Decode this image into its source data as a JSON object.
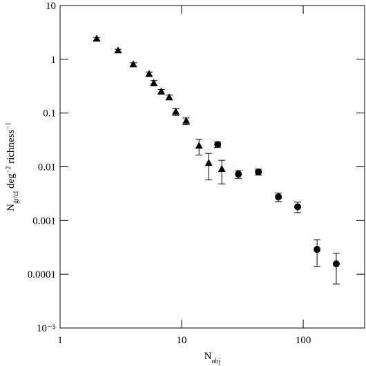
{
  "chart_data": {
    "type": "scatter",
    "x_label": [
      {
        "text": "N"
      },
      {
        "text": "obj",
        "shift": "sub"
      }
    ],
    "y_label": [
      {
        "text": "N"
      },
      {
        "text": "gr/cl",
        "shift": "sub"
      },
      {
        "text": " deg"
      },
      {
        "text": "−2",
        "shift": "sup"
      },
      {
        "text": " richness"
      },
      {
        "text": "−1",
        "shift": "sup"
      }
    ],
    "xscale": "log",
    "yscale": "log",
    "xlim": [
      1,
      320
    ],
    "ylim": [
      1e-05,
      10
    ],
    "xticks": [
      1,
      10,
      100
    ],
    "yticks": [
      10,
      1,
      0.1,
      0.01,
      0.001,
      0.0001,
      {
        "value": 1e-05,
        "label": "10⁻⁵"
      }
    ],
    "series": [
      {
        "marker": "triangle",
        "color": "#000000",
        "x": [
          2,
          3,
          4,
          5.4,
          5.9,
          6.8,
          7.9,
          8.95,
          10.9,
          13.9,
          16.7,
          21.4
        ],
        "values": [
          2.4,
          1.45,
          0.8,
          0.53,
          0.36,
          0.25,
          0.195,
          0.105,
          0.071,
          0.0245,
          0.0117,
          0.009
        ],
        "errors": [
          0.15,
          0.09,
          0.06,
          0.05,
          0.04,
          0.025,
          0.02,
          0.015,
          0.01,
          0.008,
          0.006,
          0.0042
        ]
      },
      {
        "marker": "circle",
        "color": "#000000",
        "x": [
          19.8,
          29.3,
          42.8,
          62.5,
          90,
          130,
          187
        ],
        "values": [
          0.026,
          0.0073,
          0.008,
          0.00275,
          0.0018,
          0.00029,
          0.000156
        ],
        "errors": [
          0.003,
          0.0012,
          0.001,
          0.0005,
          0.0004,
          0.00015,
          9e-05
        ]
      }
    ]
  }
}
